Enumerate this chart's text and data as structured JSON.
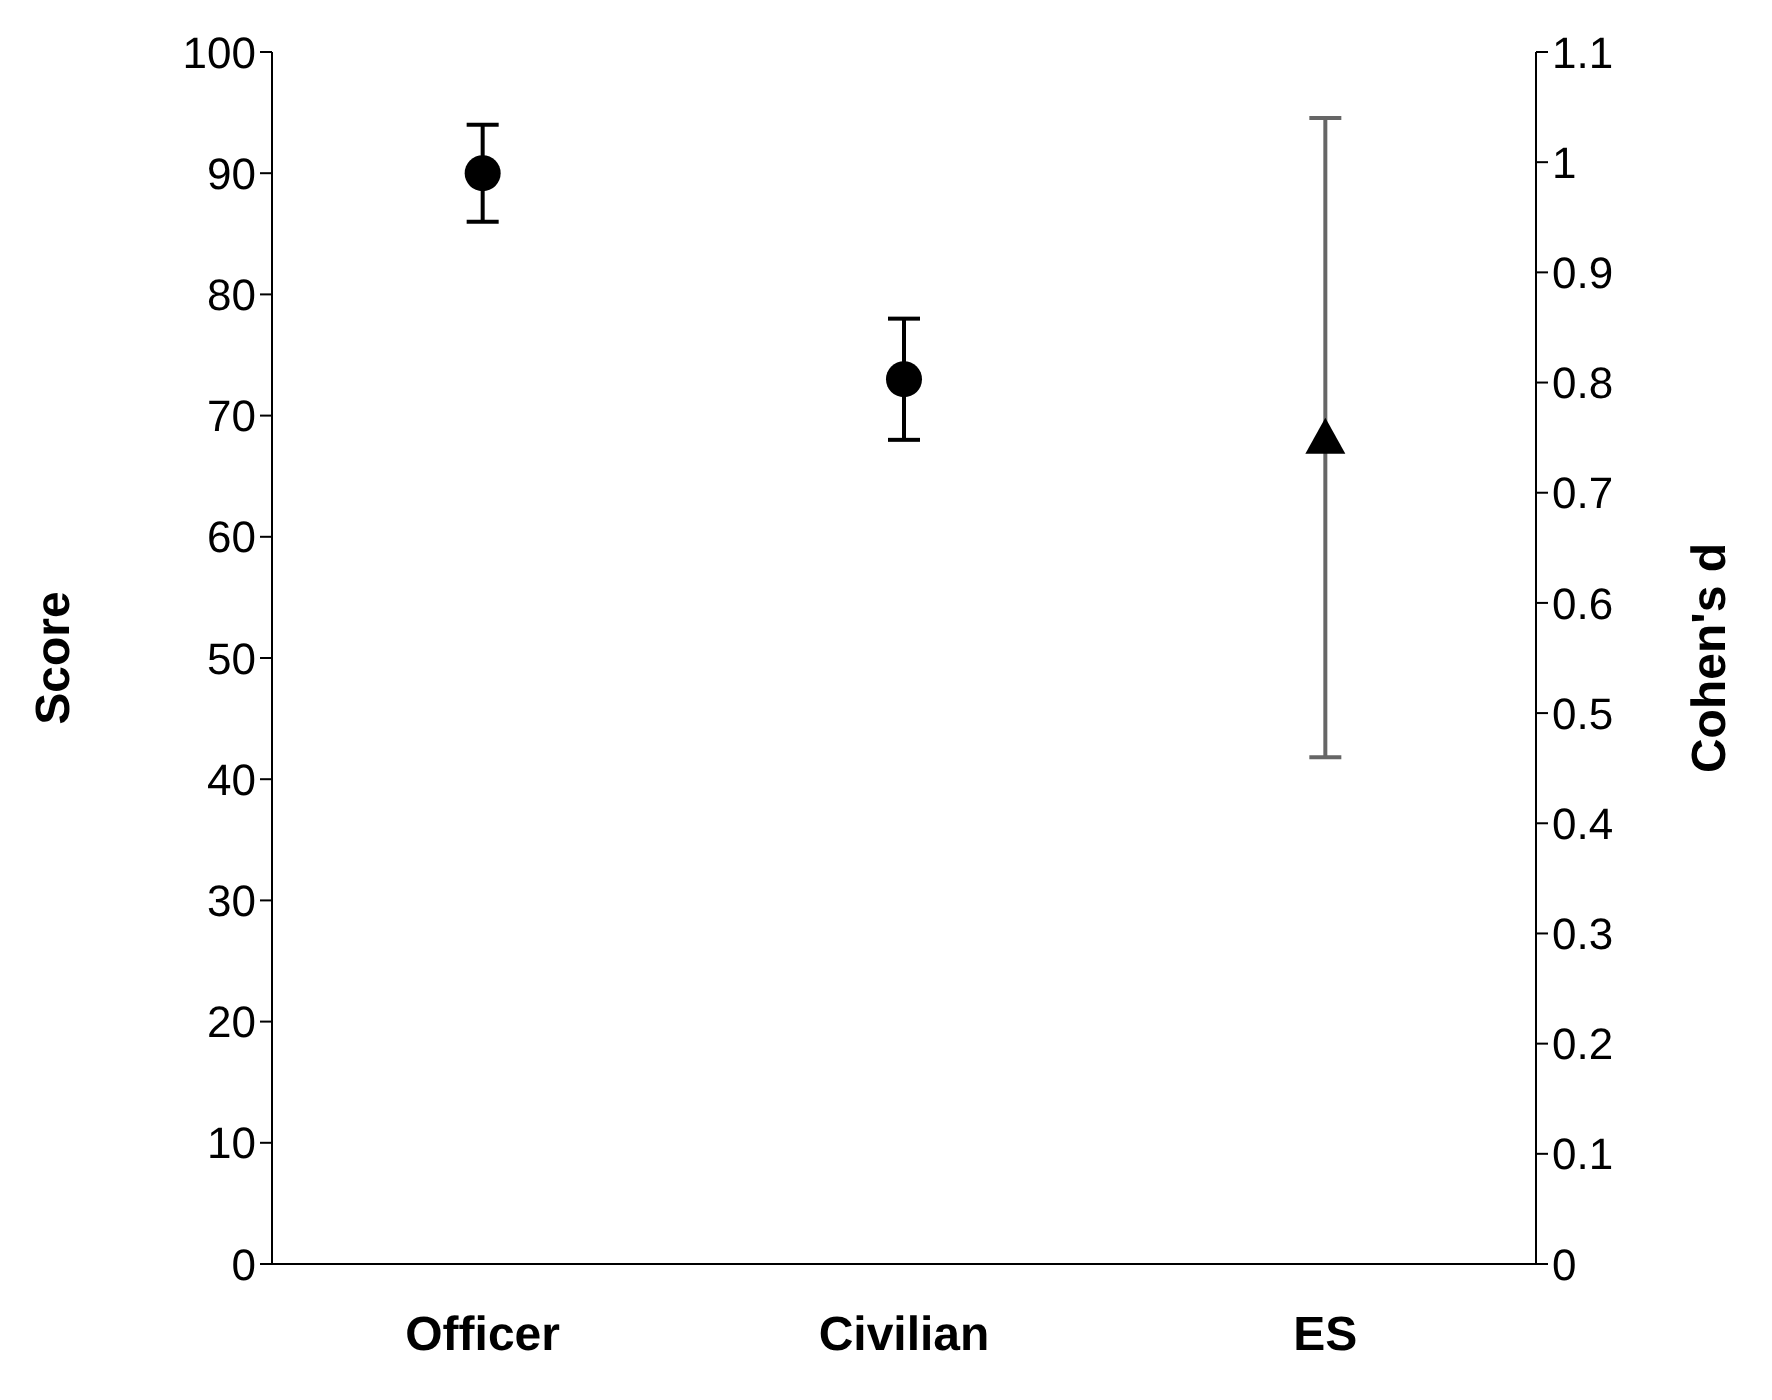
{
  "chart_data": {
    "type": "scatter",
    "categories": [
      "Officer",
      "Civilian",
      "ES"
    ],
    "ylabel": "Score",
    "y2label": "Cohen's d",
    "ylim": [
      0,
      100
    ],
    "yticks": [
      0,
      10,
      20,
      30,
      40,
      50,
      60,
      70,
      80,
      90,
      100
    ],
    "y2lim": [
      0,
      1.1
    ],
    "y2ticks": [
      0,
      0.1,
      0.2,
      0.3,
      0.4,
      0.5,
      0.6,
      0.7,
      0.8,
      0.9,
      1,
      1.1
    ],
    "grid": false,
    "series": [
      {
        "color": "#000000",
        "marker": "circle",
        "values": [
          90,
          73,
          null
        ],
        "errors": [
          [
            86,
            94
          ],
          [
            68,
            78
          ],
          null
        ]
      },
      {
        "color": "#000000",
        "marker": "triangle",
        "axis": "y2",
        "values": [
          null,
          null,
          0.75
        ],
        "errors": [
          null,
          null,
          [
            0.46,
            1.04
          ]
        ]
      }
    ]
  }
}
